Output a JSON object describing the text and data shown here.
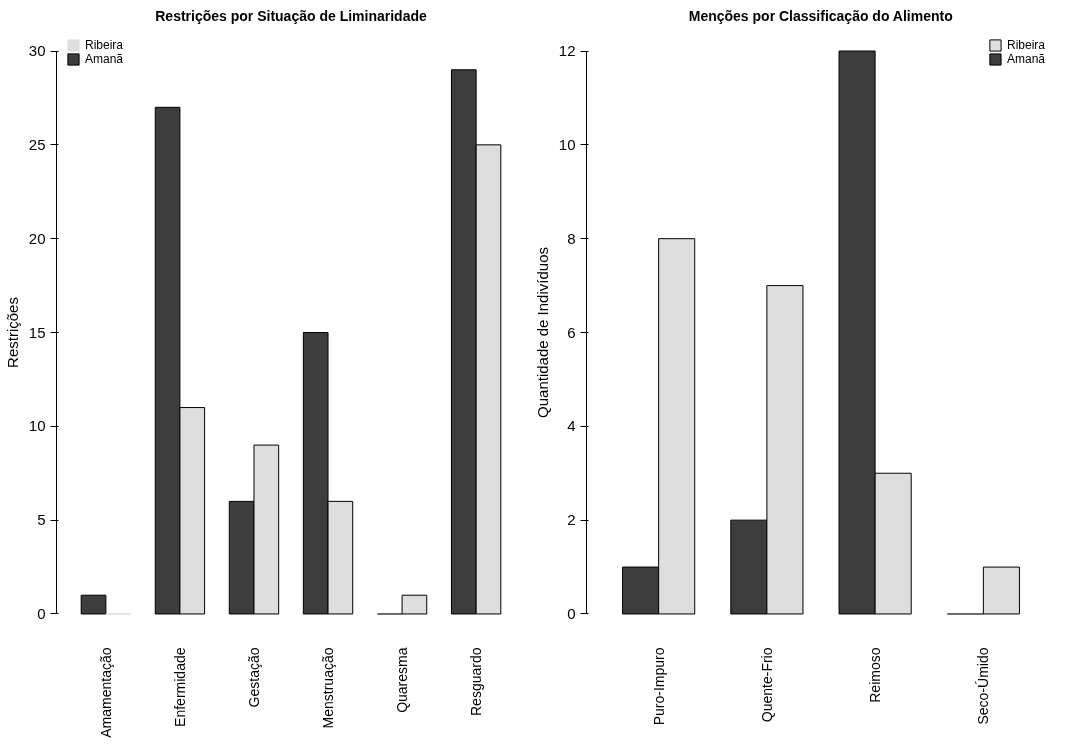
{
  "chart_data": [
    {
      "type": "bar",
      "title": "Restrições por Situação de Liminaridade",
      "ylabel": "Restrições",
      "categories": [
        "Amamentação",
        "Enfermidade",
        "Gestação",
        "Menstruação",
        "Quaresma",
        "Resguardo"
      ],
      "series": [
        {
          "name": "Amanã",
          "color": "#3d3d3d",
          "values": [
            1,
            27,
            6,
            15,
            0,
            29
          ]
        },
        {
          "name": "Ribeira",
          "color": "#dedede",
          "values": [
            0,
            11,
            9,
            6,
            1,
            25
          ]
        }
      ],
      "ylim": [
        0,
        30
      ],
      "yticks": [
        0,
        5,
        10,
        15,
        20,
        25,
        30
      ],
      "grid": false,
      "legend": "top left"
    },
    {
      "type": "bar",
      "title": "Menções por Classificação do Alimento",
      "ylabel": "Quantidade de Indivíduos",
      "categories": [
        "Puro-Impuro",
        "Quente-Frio",
        "Reimoso",
        "Seco-Úmido"
      ],
      "series": [
        {
          "name": "Amanã",
          "color": "#3d3d3d",
          "values": [
            1,
            2,
            12,
            0
          ]
        },
        {
          "name": "Ribeira",
          "color": "#dedede",
          "values": [
            8,
            7,
            3,
            1
          ]
        }
      ],
      "ylim": [
        0,
        12
      ],
      "yticks": [
        0,
        2,
        4,
        6,
        8,
        10,
        12
      ],
      "grid": false,
      "legend": "top right"
    }
  ]
}
